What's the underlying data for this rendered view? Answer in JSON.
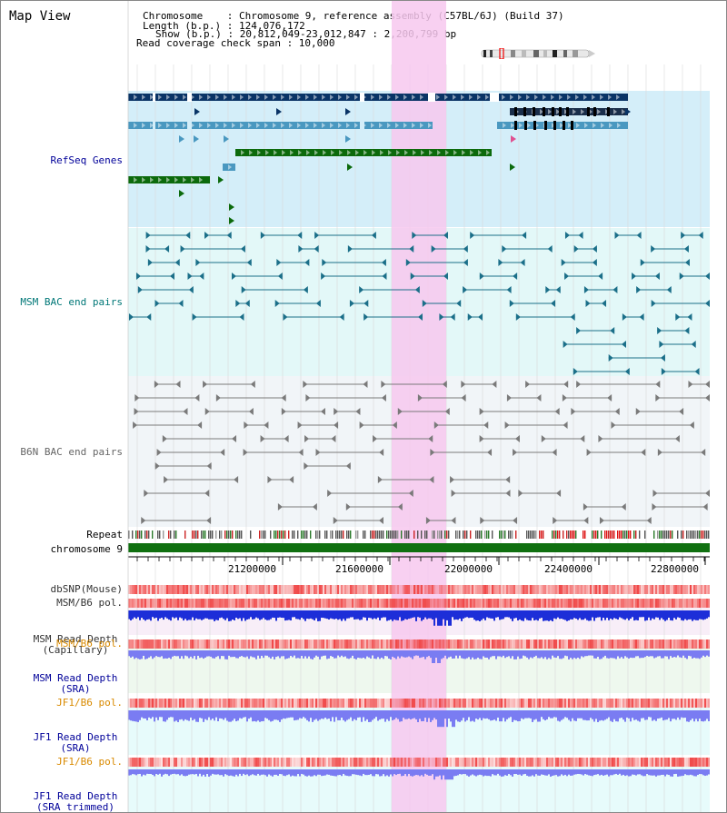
{
  "header": {
    "title": "Map View",
    "chromosome_line": "Chromosome    : Chromosome 9, reference assembly (C57BL/6J) (Build 37)",
    "length_line": "Length (b.p.) : 124,076,172",
    "show_line": "Show (b.p.) : 20,812,049-23,012,847 : 2,200,799 bp",
    "coverage_line": "Read coverage check span : 10,000"
  },
  "tracks": {
    "refseq": "RefSeq Genes",
    "msm_bac": "MSM BAC end pairs",
    "b6n_bac": "B6N BAC end pairs",
    "repeat": "Repeat",
    "chromosome": "chromosome 9",
    "dbsnp": "dbSNP(Mouse)",
    "msm_b6_pol": "MSM/B6 pol.",
    "msm_depth_cap_1": "MSM Read Depth",
    "msm_depth_cap_2": "(Capillary)",
    "msm_b6_pol2": "MSM/B6 pol.",
    "msm_depth_sra_1": "MSM Read Depth",
    "msm_depth_sra_2": "(SRA)",
    "jf1_pol": "JF1/B6 pol.",
    "jf1_depth_sra_1": "JF1 Read Depth",
    "jf1_depth_sra_2": "(SRA)",
    "jf1_pol2": "JF1/B6 pol.",
    "jf1_depth_trim_1": "JF1 Read Depth",
    "jf1_depth_trim_2": "(SRA trimmed)"
  },
  "axis": {
    "ticks": [
      "21200000",
      "21600000",
      "22000000",
      "22400000",
      "22800000"
    ]
  },
  "colors": {
    "highlight": "#f7c8ee",
    "refseq_bg": "#d4eef9",
    "msm_bg": "#e3f8f8",
    "b6n_bg": "#f1f5f8",
    "dark_blue": "#0a3466",
    "mid_blue": "#4a98c0",
    "green": "#0c6a0c",
    "chromosome_green": "#107010",
    "teal": "#1b6f89",
    "gray": "#7a7a7a",
    "depth_blue": "#1d2ed8",
    "depth_light": "#7a7cf2",
    "pol_red": "#f04848",
    "label_navy": "#000099",
    "label_teal": "#007777",
    "label_orange": "#d98a00"
  }
}
